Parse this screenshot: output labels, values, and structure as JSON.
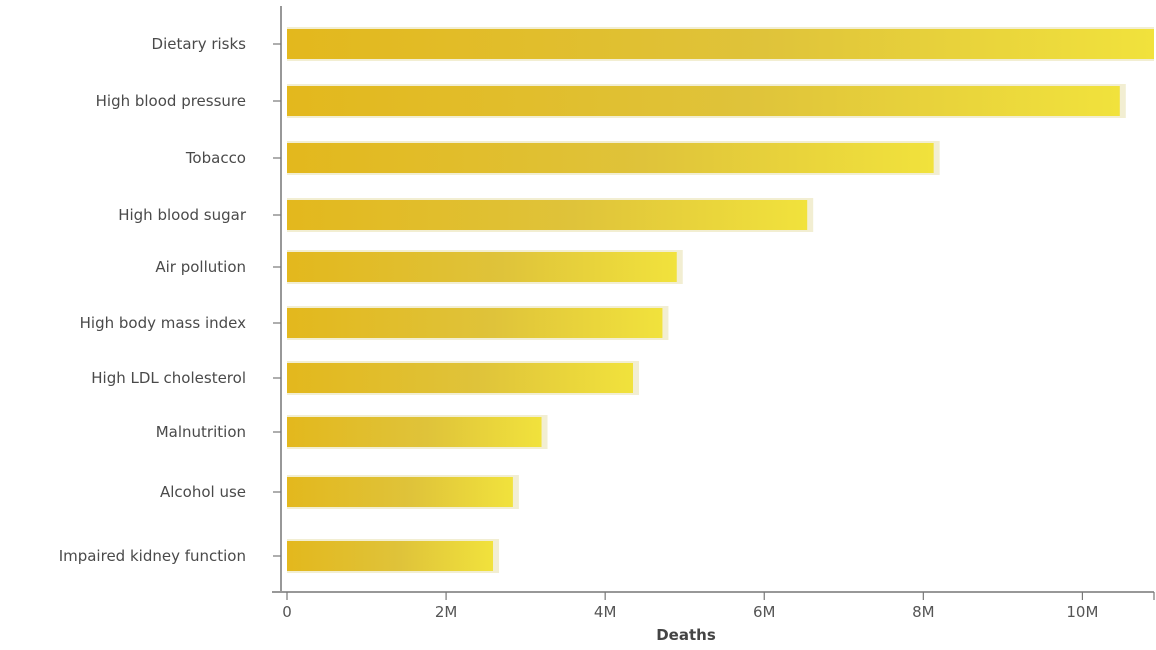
{
  "chart_data": {
    "type": "bar",
    "orientation": "horizontal",
    "categories": [
      "Dietary risks",
      "High blood pressure",
      "Tobacco",
      "High blood sugar",
      "Air pollution",
      "High body mass index",
      "High LDL cholesterol",
      "Malnutrition",
      "Alcohol use",
      "Impaired kidney function"
    ],
    "values": [
      10900000,
      10470000,
      8130000,
      6540000,
      4900000,
      4720000,
      4350000,
      3200000,
      2840000,
      2590000
    ],
    "title": "",
    "xlabel": "Deaths",
    "ylabel": "",
    "xlim": [
      0,
      10900000
    ],
    "xticks": [
      0,
      2000000,
      4000000,
      6000000,
      8000000,
      10000000
    ],
    "xtick_labels": [
      "0",
      "2M",
      "4M",
      "6M",
      "8M",
      "10M"
    ],
    "grid": false,
    "legend": "none",
    "colors": {
      "bar_start": "#e3b81d",
      "bar_mid": "#dfc33a",
      "bar_end": "#f1e23c",
      "bar_shadow": "#f2eed2"
    }
  }
}
